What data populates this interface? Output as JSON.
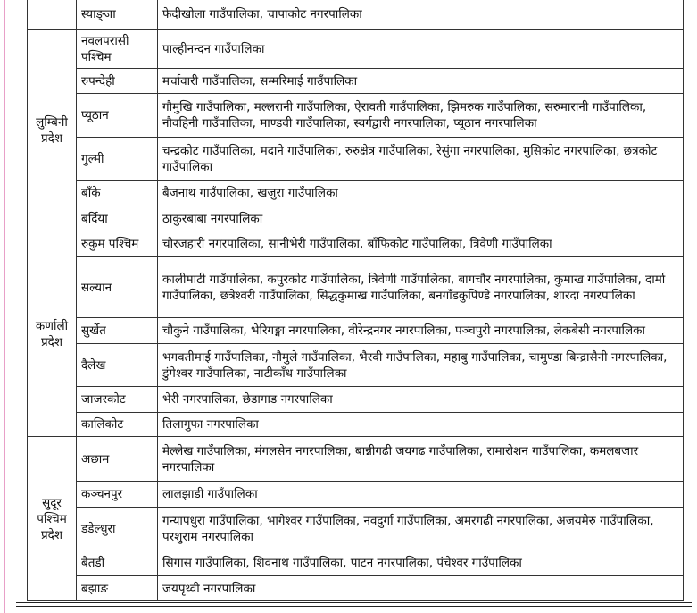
{
  "sections": [
    {
      "districts": [
        {
          "name": "स्याङ्जा",
          "units": "फेदीखोला गाउँपालिका, चापाकोट नगरपालिका"
        }
      ]
    },
    {
      "province": "लुम्बिनी प्रदेश",
      "districts": [
        {
          "name": "नवलपरासी पश्चिम",
          "units": "पाल्हीनन्दन गाउँपालिका"
        },
        {
          "name": "रुपन्देही",
          "units": "मर्चावारी गाउँपालिका, सम्मरिमाई गाउँपालिका"
        },
        {
          "name": "प्यूठान",
          "units": "गौमुखि गाउँपालिका, मल्लरानी गाउँपालिका, ऐरावती गाउँपालिका, झिमरुक गाउँपालिका, सरुमारानी गाउँपालिका, नौवहिनी गाउँपालिका, माण्डवी गाउँपालिका, स्वर्गद्वारी नगरपालिका, प्यूठान नगरपालिका"
        },
        {
          "name": "गुल्मी",
          "units": "चन्द्रकोट गाउँपालिका, मदाने गाउँपालिका, रुरुक्षेत्र गाउँपालिका, रेसुंगा नगरपालिका, मुसिकोट नगरपालिका, छत्रकोट गाउँपालिका"
        },
        {
          "name": "बाँके",
          "units": "बैजनाथ गाउँपालिका, खजुरा गाउँपालिका"
        },
        {
          "name": "बर्दिया",
          "units": "ठाकुरबाबा नगरपालिका"
        }
      ]
    },
    {
      "province": "कर्णाली प्रदेश",
      "districts": [
        {
          "name": "रुकुम पश्चिम",
          "units": "चौरजहारी नगरपालिका, सानीभेरी गाउँपालिका, बाँफिकोट गाउँपालिका, त्रिवेणी गाउँपालिका"
        },
        {
          "name": "सल्यान",
          "units": "कालीमाटी गाउँपालिका, कपुरकोट गाउँपालिका, त्रिवेणी गाउँपालिका, बागचौर नगरपालिका, कुमाख गाउँपालिका, दार्मा गाउँपालिका, छत्रेश्वरी गाउँपालिका, सिद्धकुमाख गाउँपालिका, बनगाँडकुपिण्डे नगरपालिका, शारदा नगरपालिका"
        },
        {
          "name": "सुर्खेत",
          "units": "चौकुने गाउँपालिका, भेरिगङ्गा नगरपालिका, वीरेन्द्रनगर नगरपालिका, पञ्चपुरी नगरपालिका, लेकबेसी नगरपालिका"
        },
        {
          "name": "दैलेख",
          "units": "भगवतीमाई गाउँपालिका, नौमुले गाउँपालिका, भैरवी गाउँपालिका, महाबु गाउँपालिका, चामुण्डा बिन्द्रासैनी नगरपालिका, डुंगेश्वर गाउँपालिका, नाटीकाँध गाउँपालिका"
        },
        {
          "name": "जाजरकोट",
          "units": "भेरी नगरपालिका, छेडागाड नगरपालिका"
        },
        {
          "name": "कालिकोट",
          "units": "तिलागुफा नगरपालिका"
        }
      ]
    },
    {
      "province": "सुदूर पश्चिम प्रदेश",
      "districts": [
        {
          "name": "अछाम",
          "units": "मेल्लेख गाउँपालिका, मंगलसेन नगरपालिका, बान्नीगढी जयगढ गाउँपालिका, रामारोशन गाउँपालिका, कमलबजार नगरपालिका"
        },
        {
          "name": "कञ्चनपुर",
          "units": "लालझाडी गाउँपालिका"
        },
        {
          "name": "डडेल्धुरा",
          "units": "गन्यापधुरा गाउँपालिका, भागेश्वर गाउँपालिका, नवदुर्गा गाउँपालिका, अमरगढी नगरपालिका, अजयमेरु गाउँपालिका, परशुराम नगरपालिका"
        },
        {
          "name": "बैतडी",
          "units": "सिगास गाउँपालिका, शिवनाथ गाउँपालिका, पाटन नगरपालिका, पंचेश्वर गाउँपालिका"
        },
        {
          "name": "बझाङ",
          "units": "जयपृथ्वी नगरपालिका"
        }
      ]
    }
  ]
}
